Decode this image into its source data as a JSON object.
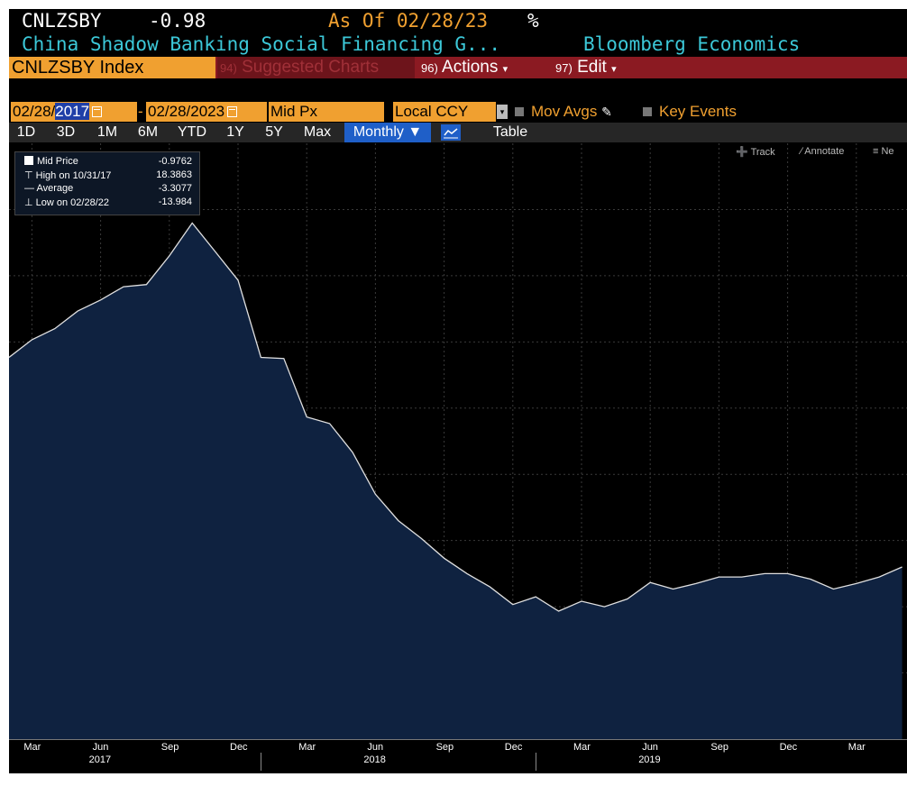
{
  "header": {
    "ticker": "CNLZSBY",
    "last_value": "-0.98",
    "as_of": "As Of 02/28/23",
    "unit": "%",
    "title": "China Shadow Banking Social Financing G...",
    "source": "Bloomberg Economics"
  },
  "toolbar": {
    "index_label": "CNLZSBY Index",
    "suggested_num": "94)",
    "suggested_label": "Suggested Charts",
    "actions_num": "96)",
    "actions_label": "Actions",
    "edit_num": "97)",
    "edit_label": "Edit"
  },
  "controls": {
    "start_date_prefix": "02/28/",
    "start_date_year": "2017",
    "end_date": "02/28/2023",
    "price_field": "Mid Px",
    "currency": "Local CCY",
    "mov_avgs": "Mov Avgs",
    "key_events": "Key Events"
  },
  "ranges": {
    "r1": "1D",
    "r2": "3D",
    "r3": "1M",
    "r4": "6M",
    "r5": "YTD",
    "r6": "1Y",
    "r7": "5Y",
    "r8": "Max",
    "frequency": "Monthly ▼",
    "table": "Table"
  },
  "chart_tools": {
    "track": "Track",
    "annotate": "Annotate",
    "news": "Ne"
  },
  "legend": {
    "mid_label": "Mid Price",
    "mid_value": "-0.9762",
    "high_label": "High on 10/31/17",
    "high_value": "18.3863",
    "avg_label": "Average",
    "avg_value": "-3.3077",
    "low_label": "Low on 02/28/22",
    "low_value": "-13.984"
  },
  "colors": {
    "background": "#000000",
    "area_fill": "#0f2240",
    "line": "#e0e0e0",
    "accent_orange": "#f0a030",
    "header_cyan": "#3cc8d8",
    "toolbar_red": "#8b1a22",
    "selected_blue": "#1f5fc8"
  },
  "axis": {
    "month_labels": [
      "Mar",
      "Jun",
      "Sep",
      "Dec",
      "Mar",
      "Jun",
      "Sep",
      "Dec",
      "Mar",
      "Jun",
      "Sep",
      "Dec",
      "Mar"
    ],
    "year_labels": [
      "2017",
      "2018",
      "2019"
    ]
  },
  "chart_data": {
    "type": "area",
    "x": [
      "2017-02",
      "2017-03",
      "2017-04",
      "2017-05",
      "2017-06",
      "2017-07",
      "2017-08",
      "2017-09",
      "2017-10",
      "2017-11",
      "2017-12",
      "2018-01",
      "2018-02",
      "2018-03",
      "2018-04",
      "2018-05",
      "2018-06",
      "2018-07",
      "2018-08",
      "2018-09",
      "2018-10",
      "2018-11",
      "2018-12",
      "2019-01",
      "2019-02",
      "2019-03",
      "2019-04",
      "2019-05",
      "2019-06",
      "2019-07",
      "2019-08",
      "2019-09",
      "2019-10",
      "2019-11",
      "2019-12",
      "2020-01",
      "2020-02",
      "2020-03",
      "2020-04",
      "2020-05"
    ],
    "values": [
      12.3,
      13.1,
      13.6,
      14.4,
      14.9,
      15.5,
      15.6,
      16.9,
      18.39,
      17.1,
      15.8,
      12.3,
      12.25,
      9.6,
      9.3,
      8.0,
      6.1,
      4.9,
      4.1,
      3.2,
      2.5,
      1.9,
      1.1,
      1.45,
      0.8,
      1.25,
      1.0,
      1.35,
      2.1,
      1.8,
      2.05,
      2.35,
      2.35,
      2.5,
      2.5,
      2.25,
      1.8,
      2.05,
      2.35,
      2.8
    ],
    "grid": true,
    "ylim": [
      -5,
      22
    ]
  }
}
